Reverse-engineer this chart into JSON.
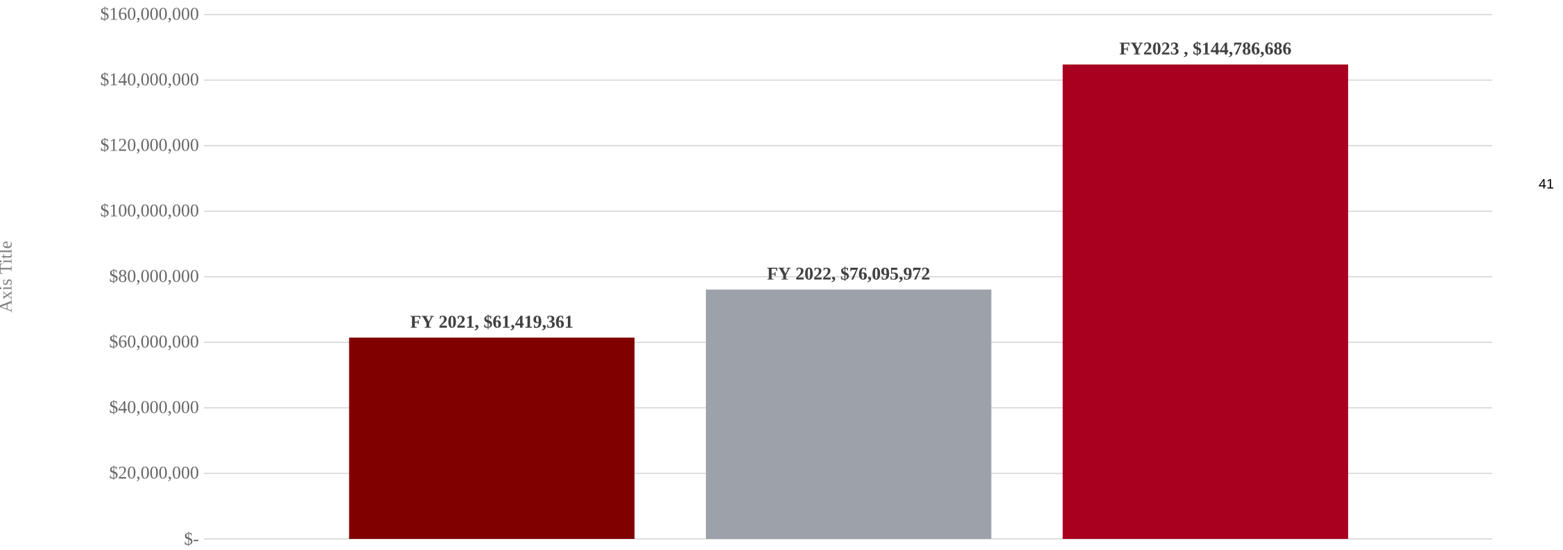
{
  "chart_data": {
    "type": "bar",
    "ylabel": "Axis Title",
    "categories": [
      null,
      null,
      null
    ],
    "values": [
      61419361,
      76095972,
      144786686
    ],
    "colors": [
      "#800000",
      "#9da1a9",
      "#a8001e"
    ],
    "value_labels": [
      "FY 2021, $61,419,361",
      "FY 2022,  $76,095,972",
      "FY2023 ,  $144,786,686"
    ],
    "ylim": [
      0,
      160000000
    ],
    "yticks": [
      {
        "value": 0,
        "label": "$-"
      },
      {
        "value": 20000000,
        "label": "$20,000,000"
      },
      {
        "value": 40000000,
        "label": "$40,000,000"
      },
      {
        "value": 60000000,
        "label": "$60,000,000"
      },
      {
        "value": 80000000,
        "label": "$80,000,000"
      },
      {
        "value": 100000000,
        "label": "$100,000,000"
      },
      {
        "value": 120000000,
        "label": "$120,000,000"
      },
      {
        "value": 140000000,
        "label": "$140,000,000"
      },
      {
        "value": 160000000,
        "label": "$160,000,000"
      }
    ],
    "grid": "y",
    "annotations": [
      "41"
    ]
  }
}
